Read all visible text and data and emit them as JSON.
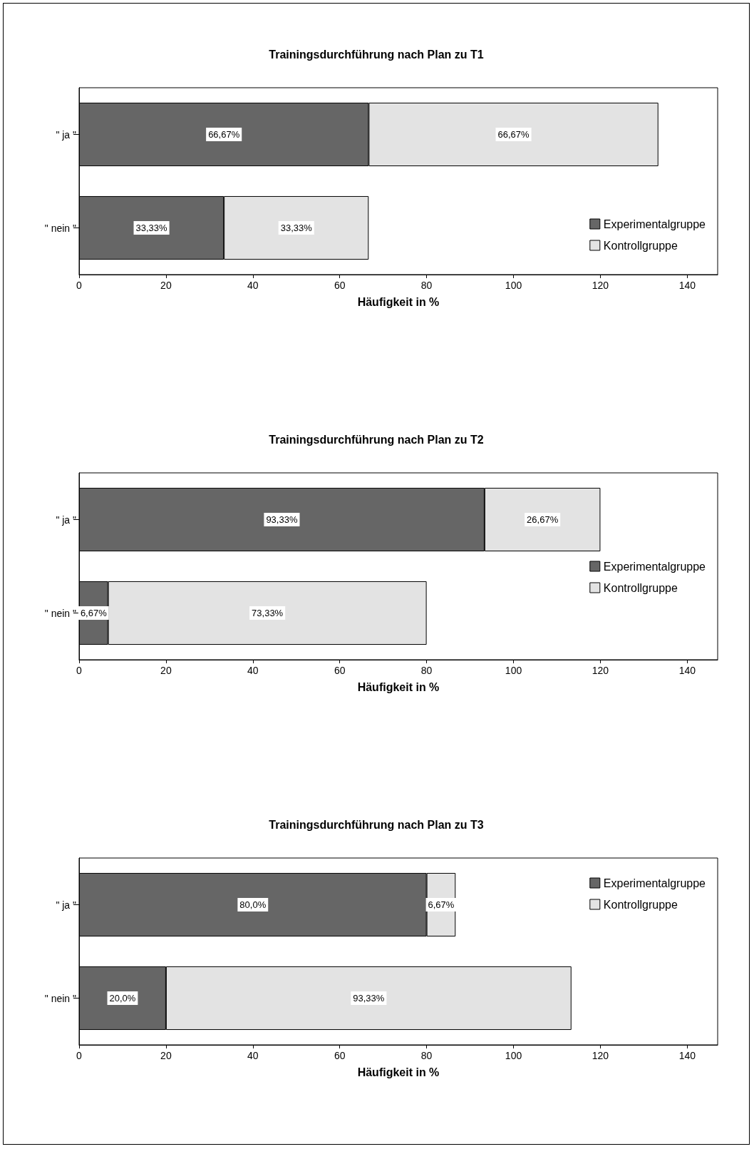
{
  "chart_data": [
    {
      "type": "bar",
      "orientation": "horizontal",
      "stacked": true,
      "title": "Trainingsdurchführung nach Plan zu T1",
      "xlabel": "Häufigkeit in %",
      "categories": [
        "\" ja \"",
        "\" nein \""
      ],
      "xlim": [
        0,
        147
      ],
      "xticks": [
        0,
        20,
        40,
        60,
        80,
        100,
        120,
        140
      ],
      "grid": false,
      "legend": "bottom right",
      "series": [
        {
          "name": "Experimentalgruppe",
          "color": "#666666",
          "values": [
            66.67,
            33.33
          ],
          "value_labels": [
            "66,67%",
            "33,33%"
          ]
        },
        {
          "name": "Kontrollgruppe",
          "color": "#e3e3e3",
          "values": [
            66.67,
            33.33
          ],
          "value_labels": [
            "66,67%",
            "33,33%"
          ]
        }
      ]
    },
    {
      "type": "bar",
      "orientation": "horizontal",
      "stacked": true,
      "title": "Trainingsdurchführung nach Plan zu T2",
      "xlabel": "Häufigkeit in %",
      "categories": [
        "\" ja \"",
        "\" nein \""
      ],
      "xlim": [
        0,
        147
      ],
      "xticks": [
        0,
        20,
        40,
        60,
        80,
        100,
        120,
        140
      ],
      "grid": false,
      "legend": "right",
      "series": [
        {
          "name": "Experimentalgruppe",
          "color": "#666666",
          "values": [
            93.33,
            6.67
          ],
          "value_labels": [
            "93,33%",
            "6,67%"
          ]
        },
        {
          "name": "Kontrollgruppe",
          "color": "#e3e3e3",
          "values": [
            26.67,
            73.33
          ],
          "value_labels": [
            "26,67%",
            "73,33%"
          ]
        }
      ]
    },
    {
      "type": "bar",
      "orientation": "horizontal",
      "stacked": true,
      "title": "Trainingsdurchführung nach Plan zu T3",
      "xlabel": "Häufigkeit in %",
      "categories": [
        "\" ja \"",
        "\" nein \""
      ],
      "xlim": [
        0,
        147
      ],
      "xticks": [
        0,
        20,
        40,
        60,
        80,
        100,
        120,
        140
      ],
      "grid": false,
      "legend": "top right",
      "series": [
        {
          "name": "Experimentalgruppe",
          "color": "#666666",
          "values": [
            80.0,
            20.0
          ],
          "value_labels": [
            "80,0%",
            "20,0%"
          ]
        },
        {
          "name": "Kontrollgruppe",
          "color": "#e3e3e3",
          "values": [
            6.67,
            93.33
          ],
          "value_labels": [
            "6,67%",
            "93,33%"
          ]
        }
      ]
    }
  ]
}
